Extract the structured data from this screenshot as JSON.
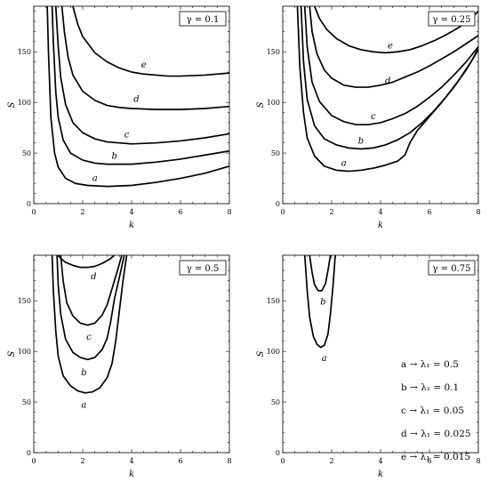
{
  "legend": [
    "a → λ₁ = 0.5",
    "b → λ₁ = 0.1",
    "c → λ₁ = 0.05",
    "d → λ₁ = 0.025",
    "e → λ₁ = 0.015"
  ],
  "chart_data": [
    {
      "type": "line",
      "panel_label": "γ = 0.1",
      "xlabel": "k",
      "ylabel": "S",
      "xlim": [
        0,
        8
      ],
      "ylim": [
        0,
        195
      ],
      "xticks": [
        0,
        2,
        4,
        6,
        8
      ],
      "yticks": [
        0,
        50,
        100,
        150
      ],
      "grid": false,
      "series": [
        {
          "name": "a",
          "x": [
            0.55,
            0.6,
            0.7,
            0.85,
            1.0,
            1.3,
            1.7,
            2.2,
            3.0,
            4.0,
            5.0,
            6.0,
            7.0,
            8.0
          ],
          "y": [
            195,
            150,
            85,
            50,
            36,
            25,
            20,
            18,
            17,
            18,
            21,
            25,
            30,
            37
          ]
        },
        {
          "name": "b",
          "x": [
            0.75,
            0.8,
            0.9,
            1.0,
            1.2,
            1.5,
            2.0,
            2.5,
            3.0,
            4.0,
            5.0,
            6.0,
            7.0,
            8.0
          ],
          "y": [
            195,
            160,
            110,
            85,
            63,
            50,
            43,
            40,
            39,
            39,
            41,
            44,
            48,
            52
          ]
        },
        {
          "name": "c",
          "x": [
            0.9,
            1.0,
            1.1,
            1.3,
            1.6,
            2.0,
            2.5,
            3.0,
            3.5,
            4.0,
            5.0,
            6.0,
            7.0,
            8.0
          ],
          "y": [
            195,
            155,
            125,
            98,
            80,
            70,
            64,
            61,
            60,
            59,
            60,
            62,
            65,
            69
          ]
        },
        {
          "name": "d",
          "x": [
            1.15,
            1.25,
            1.4,
            1.6,
            2.0,
            2.5,
            3.0,
            3.5,
            4.0,
            5.0,
            6.0,
            7.0,
            8.0
          ],
          "y": [
            195,
            170,
            145,
            127,
            111,
            102,
            97,
            95,
            94,
            93,
            93,
            94,
            96
          ]
        },
        {
          "name": "e",
          "x": [
            1.6,
            1.8,
            2.0,
            2.5,
            3.0,
            3.5,
            4.0,
            4.5,
            5.0,
            5.5,
            6.0,
            7.0,
            8.0
          ],
          "y": [
            195,
            177,
            165,
            149,
            140,
            134,
            130,
            128,
            127,
            126,
            126,
            127,
            129
          ]
        }
      ],
      "labels": [
        {
          "text": "a",
          "x": 2.5,
          "y": 25
        },
        {
          "text": "b",
          "x": 3.3,
          "y": 47
        },
        {
          "text": "c",
          "x": 3.8,
          "y": 68
        },
        {
          "text": "d",
          "x": 4.2,
          "y": 103
        },
        {
          "text": "e",
          "x": 4.5,
          "y": 137
        }
      ]
    },
    {
      "type": "line",
      "panel_label": "γ = 0.25",
      "xlabel": "k",
      "ylabel": "S",
      "xlim": [
        0,
        8
      ],
      "ylim": [
        0,
        195
      ],
      "xticks": [
        0,
        2,
        4,
        6,
        8
      ],
      "yticks": [
        0,
        50,
        100,
        150
      ],
      "grid": false,
      "series": [
        {
          "name": "a",
          "x": [
            0.6,
            0.7,
            0.85,
            1.0,
            1.3,
            1.7,
            2.2,
            2.7,
            3.2,
            3.7,
            4.2,
            4.7,
            5.0,
            5.2,
            5.5,
            6.0,
            6.5,
            7.0,
            7.5,
            8.0
          ],
          "y": [
            195,
            135,
            90,
            65,
            47,
            37,
            33,
            32,
            33,
            35,
            38,
            42,
            48,
            60,
            72,
            86,
            100,
            115,
            132,
            152
          ]
        },
        {
          "name": "b",
          "x": [
            0.75,
            0.85,
            1.0,
            1.3,
            1.7,
            2.2,
            2.7,
            3.2,
            3.7,
            4.2,
            4.7,
            5.2,
            5.7,
            6.2,
            6.7,
            7.2,
            7.7,
            8.0
          ],
          "y": [
            195,
            140,
            103,
            77,
            64,
            58,
            55,
            54,
            55,
            58,
            63,
            70,
            80,
            92,
            106,
            122,
            140,
            153
          ]
        },
        {
          "name": "c",
          "x": [
            0.9,
            1.0,
            1.2,
            1.5,
            2.0,
            2.5,
            3.0,
            3.5,
            4.0,
            4.5,
            5.0,
            5.5,
            6.0,
            6.5,
            7.0,
            7.5,
            8.0
          ],
          "y": [
            195,
            155,
            120,
            101,
            87,
            81,
            78,
            78,
            80,
            84,
            89,
            96,
            105,
            115,
            127,
            140,
            155
          ]
        },
        {
          "name": "d",
          "x": [
            1.1,
            1.2,
            1.4,
            1.7,
            2.0,
            2.5,
            3.0,
            3.5,
            4.0,
            4.5,
            5.0,
            5.5,
            6.0,
            6.5,
            7.0,
            7.5,
            8.0
          ],
          "y": [
            195,
            170,
            148,
            132,
            124,
            117,
            115,
            115,
            117,
            120,
            125,
            130,
            136,
            143,
            150,
            158,
            166
          ]
        },
        {
          "name": "e",
          "x": [
            1.3,
            1.5,
            1.8,
            2.2,
            2.7,
            3.2,
            3.7,
            4.2,
            4.7,
            5.2,
            5.7,
            6.2,
            6.7,
            7.2,
            7.7,
            8.0
          ],
          "y": [
            195,
            183,
            172,
            163,
            156,
            152,
            150,
            149,
            150,
            152,
            156,
            161,
            167,
            174,
            183,
            190
          ]
        }
      ],
      "labels": [
        {
          "text": "a",
          "x": 2.5,
          "y": 40
        },
        {
          "text": "b",
          "x": 3.2,
          "y": 62
        },
        {
          "text": "c",
          "x": 3.7,
          "y": 86
        },
        {
          "text": "d",
          "x": 4.3,
          "y": 121
        },
        {
          "text": "e",
          "x": 4.4,
          "y": 156
        }
      ]
    },
    {
      "type": "line",
      "panel_label": "γ = 0.5",
      "xlabel": "k",
      "ylabel": "S",
      "xlim": [
        0,
        8
      ],
      "ylim": [
        0,
        195
      ],
      "xticks": [
        0,
        2,
        4,
        6,
        8
      ],
      "yticks": [
        0,
        50,
        100,
        150
      ],
      "grid": false,
      "series": [
        {
          "name": "a",
          "x": [
            0.75,
            0.8,
            0.9,
            1.0,
            1.2,
            1.5,
            1.8,
            2.1,
            2.4,
            2.7,
            3.0,
            3.2,
            3.35,
            3.5,
            3.65,
            3.8
          ],
          "y": [
            195,
            160,
            120,
            95,
            76,
            66,
            61,
            59,
            60,
            64,
            74,
            88,
            110,
            140,
            170,
            195
          ]
        },
        {
          "name": "b",
          "x": [
            0.95,
            1.0,
            1.1,
            1.3,
            1.6,
            1.9,
            2.2,
            2.5,
            2.8,
            3.0,
            3.15,
            3.3,
            3.5,
            3.7
          ],
          "y": [
            195,
            165,
            137,
            112,
            99,
            94,
            92,
            94,
            102,
            113,
            130,
            152,
            173,
            195
          ]
        },
        {
          "name": "c",
          "x": [
            1.1,
            1.2,
            1.35,
            1.6,
            1.9,
            2.2,
            2.5,
            2.8,
            3.0,
            3.2,
            3.4,
            3.6
          ],
          "y": [
            195,
            170,
            148,
            135,
            128,
            126,
            128,
            136,
            146,
            162,
            178,
            195
          ]
        },
        {
          "name": "d",
          "x": [
            1.0,
            1.1,
            1.3,
            1.6,
            1.9,
            2.2,
            2.5,
            2.8,
            3.1,
            3.3
          ],
          "y": [
            195,
            192,
            188,
            185,
            183,
            183,
            184,
            187,
            191,
            195
          ]
        }
      ],
      "labels": [
        {
          "text": "a",
          "x": 2.05,
          "y": 47
        },
        {
          "text": "b",
          "x": 2.05,
          "y": 79
        },
        {
          "text": "c",
          "x": 2.25,
          "y": 114
        },
        {
          "text": "d",
          "x": 2.45,
          "y": 174
        }
      ]
    },
    {
      "type": "line",
      "panel_label": "γ = 0.75",
      "xlabel": "k",
      "ylabel": "S",
      "xlim": [
        0,
        8
      ],
      "ylim": [
        0,
        195
      ],
      "xticks": [
        0,
        2,
        4,
        6,
        8
      ],
      "yticks": [
        0,
        50,
        100,
        150
      ],
      "grid": false,
      "series": [
        {
          "name": "a",
          "x": [
            0.9,
            1.0,
            1.1,
            1.25,
            1.4,
            1.55,
            1.7,
            1.85,
            1.95,
            2.05,
            2.15
          ],
          "y": [
            195,
            160,
            134,
            115,
            107,
            104,
            106,
            117,
            137,
            163,
            195
          ]
        },
        {
          "name": "b",
          "x": [
            1.1,
            1.2,
            1.3,
            1.45,
            1.6,
            1.75,
            1.85,
            1.95
          ],
          "y": [
            195,
            178,
            166,
            160,
            160,
            167,
            180,
            195
          ]
        }
      ],
      "labels": [
        {
          "text": "a",
          "x": 1.7,
          "y": 93
        },
        {
          "text": "b",
          "x": 1.65,
          "y": 149
        }
      ]
    }
  ]
}
